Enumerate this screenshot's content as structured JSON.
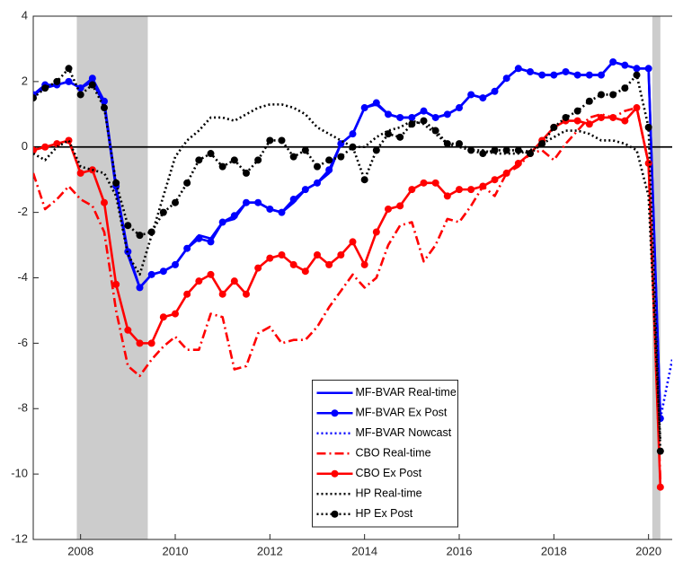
{
  "chart_data": {
    "type": "line",
    "x": [
      2007,
      2007.25,
      2007.5,
      2007.75,
      2008,
      2008.25,
      2008.5,
      2008.75,
      2009,
      2009.25,
      2009.5,
      2009.75,
      2010,
      2010.25,
      2010.5,
      2010.75,
      2011,
      2011.25,
      2011.5,
      2011.75,
      2012,
      2012.25,
      2012.5,
      2012.75,
      2013,
      2013.25,
      2013.5,
      2013.75,
      2014,
      2014.25,
      2014.5,
      2014.75,
      2015,
      2015.25,
      2015.5,
      2015.75,
      2016,
      2016.25,
      2016.5,
      2016.75,
      2017,
      2017.25,
      2017.5,
      2017.75,
      2018,
      2018.25,
      2018.5,
      2018.75,
      2019,
      2019.25,
      2019.5,
      2019.75,
      2020,
      2020.25,
      2020.5
    ],
    "series": [
      {
        "name": "MF-BVAR Real-time",
        "color": "#0000ff",
        "dash": "solid",
        "marker": "none",
        "values": [
          1.6,
          1.8,
          1.9,
          2.0,
          1.8,
          2.0,
          1.3,
          -1.3,
          -3.3,
          -4.3,
          -3.9,
          -3.8,
          -3.6,
          -3.1,
          -2.7,
          -2.8,
          -2.3,
          -2.2,
          -1.7,
          -1.7,
          -1.9,
          -2.0,
          -1.7,
          -1.3,
          -1.1,
          -0.8,
          0.1,
          0.4,
          1.2,
          1.3,
          1.0,
          0.9,
          0.9,
          1.1,
          0.9,
          1.0,
          1.2,
          1.6,
          1.5,
          1.7,
          2.1,
          2.4,
          2.3,
          2.2,
          2.2,
          2.3,
          2.2,
          2.2,
          2.2,
          2.6,
          2.5,
          2.4,
          2.4,
          -8.3,
          null
        ]
      },
      {
        "name": "MF-BVAR Ex Post",
        "color": "#0000ff",
        "dash": "solid",
        "marker": "circle",
        "values": [
          1.6,
          1.9,
          1.9,
          2.0,
          1.8,
          2.1,
          1.4,
          -1.2,
          -3.2,
          -4.3,
          -3.9,
          -3.8,
          -3.6,
          -3.1,
          -2.8,
          -2.9,
          -2.3,
          -2.1,
          -1.7,
          -1.7,
          -1.9,
          -2.0,
          -1.6,
          -1.3,
          -1.1,
          -0.7,
          0.1,
          0.4,
          1.2,
          1.35,
          1.0,
          0.9,
          0.9,
          1.1,
          0.9,
          1.0,
          1.2,
          1.6,
          1.5,
          1.7,
          2.1,
          2.4,
          2.3,
          2.2,
          2.2,
          2.3,
          2.2,
          2.2,
          2.2,
          2.6,
          2.5,
          2.4,
          2.4,
          -8.3,
          null
        ]
      },
      {
        "name": "MF-BVAR Nowcast",
        "color": "#0000ff",
        "dash": "dotted",
        "marker": "none",
        "values": [
          null,
          null,
          null,
          null,
          null,
          null,
          null,
          null,
          null,
          null,
          null,
          null,
          null,
          null,
          null,
          null,
          null,
          null,
          null,
          null,
          null,
          null,
          null,
          null,
          null,
          null,
          null,
          null,
          null,
          null,
          null,
          null,
          null,
          null,
          null,
          null,
          null,
          null,
          null,
          null,
          null,
          null,
          null,
          null,
          null,
          null,
          null,
          null,
          null,
          null,
          null,
          null,
          null,
          -8.3,
          -6.5
        ]
      },
      {
        "name": "CBO Real-time",
        "color": "#ff0000",
        "dash": "dashdot",
        "marker": "none",
        "values": [
          -0.8,
          -1.9,
          -1.6,
          -1.2,
          -1.6,
          -1.8,
          -2.6,
          -5.0,
          -6.7,
          -7.0,
          -6.5,
          -6.1,
          -5.8,
          -6.2,
          -6.2,
          -5.1,
          -5.2,
          -6.8,
          -6.7,
          -5.7,
          -5.5,
          -6.0,
          -5.9,
          -5.9,
          -5.5,
          -4.9,
          -4.4,
          -3.9,
          -4.3,
          -4.0,
          -3.0,
          -2.4,
          -2.3,
          -3.5,
          -3.0,
          -2.2,
          -2.3,
          -1.8,
          -1.2,
          -1.5,
          -0.8,
          -0.6,
          -0.2,
          -0.1,
          -0.4,
          0.1,
          0.5,
          0.9,
          1.0,
          0.9,
          1.1,
          1.2,
          -0.5,
          -10.2,
          null
        ]
      },
      {
        "name": "CBO Ex Post",
        "color": "#ff0000",
        "dash": "solid",
        "marker": "circle",
        "values": [
          -0.1,
          0.0,
          0.1,
          0.2,
          -0.8,
          -0.7,
          -1.7,
          -4.2,
          -5.6,
          -6.0,
          -6.0,
          -5.2,
          -5.1,
          -4.5,
          -4.1,
          -3.9,
          -4.5,
          -4.1,
          -4.5,
          -3.7,
          -3.4,
          -3.3,
          -3.6,
          -3.8,
          -3.3,
          -3.6,
          -3.3,
          -2.9,
          -3.6,
          -2.6,
          -1.9,
          -1.8,
          -1.3,
          -1.1,
          -1.1,
          -1.5,
          -1.3,
          -1.3,
          -1.2,
          -1.0,
          -0.8,
          -0.5,
          -0.2,
          0.2,
          0.6,
          0.8,
          0.8,
          0.7,
          0.9,
          0.9,
          0.8,
          1.2,
          -0.5,
          -10.4,
          null
        ]
      },
      {
        "name": "HP Real-time",
        "color": "#000000",
        "dash": "dotted",
        "marker": "none",
        "values": [
          -0.2,
          -0.4,
          0.0,
          0.2,
          -0.6,
          -0.7,
          -0.8,
          -1.5,
          -3.3,
          -3.9,
          -2.7,
          -1.5,
          -0.3,
          0.2,
          0.5,
          0.9,
          0.9,
          0.8,
          1.0,
          1.2,
          1.3,
          1.3,
          1.2,
          1.0,
          0.6,
          0.4,
          0.2,
          0.0,
          0.0,
          0.3,
          0.5,
          0.6,
          0.8,
          0.7,
          0.4,
          0.1,
          0.0,
          -0.1,
          -0.1,
          -0.2,
          -0.2,
          -0.2,
          -0.1,
          0.1,
          0.3,
          0.5,
          0.5,
          0.4,
          0.2,
          0.2,
          0.1,
          -0.1,
          -1.5,
          -9.0,
          null
        ]
      },
      {
        "name": "HP Ex Post",
        "color": "#000000",
        "dash": "dotted",
        "marker": "circle",
        "values": [
          1.5,
          1.8,
          2.0,
          2.4,
          1.6,
          1.9,
          1.2,
          -1.1,
          -2.4,
          -2.7,
          -2.6,
          -2.0,
          -1.7,
          -1.1,
          -0.4,
          -0.2,
          -0.6,
          -0.4,
          -0.8,
          -0.4,
          0.2,
          0.2,
          -0.3,
          -0.1,
          -0.6,
          -0.4,
          -0.3,
          0.0,
          -1.0,
          -0.1,
          0.4,
          0.3,
          0.7,
          0.8,
          0.5,
          0.1,
          0.1,
          -0.1,
          -0.2,
          -0.1,
          -0.1,
          -0.1,
          -0.2,
          0.1,
          0.6,
          0.9,
          1.1,
          1.4,
          1.6,
          1.6,
          1.8,
          2.2,
          0.6,
          -9.3,
          null
        ]
      }
    ],
    "xlim": [
      2007,
      2020.5
    ],
    "xticks": [
      2008,
      2010,
      2012,
      2014,
      2016,
      2018,
      2020
    ],
    "ylim": [
      -12,
      4
    ],
    "yticks": [
      -12,
      -10,
      -8,
      -6,
      -4,
      -2,
      0,
      2,
      4
    ],
    "reference_line": 0,
    "shaded_regions": [
      [
        2007.92,
        2009.42
      ],
      [
        2020.08,
        2020.25
      ]
    ],
    "shade_color": "#cccccc",
    "legend": "lower center"
  }
}
